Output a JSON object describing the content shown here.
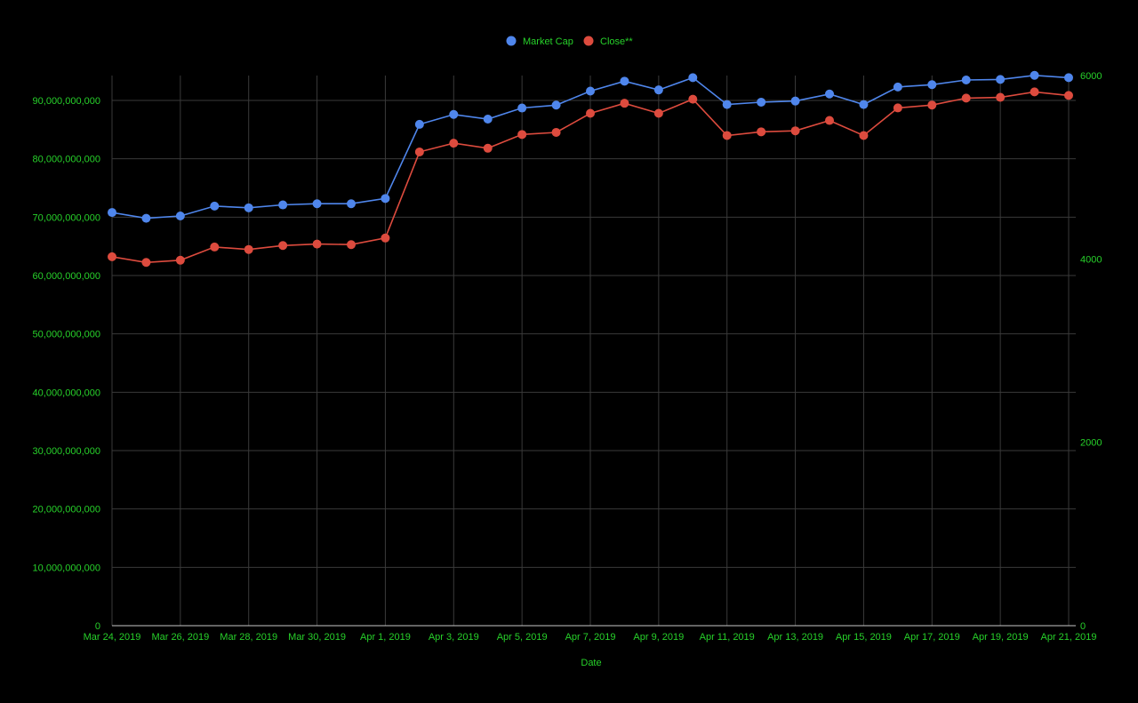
{
  "chart_data": {
    "type": "line",
    "xlabel": "Date",
    "y_left_ticks": [
      "0",
      "10,000,000,000",
      "20,000,000,000",
      "30,000,000,000",
      "40,000,000,000",
      "50,000,000,000",
      "60,000,000,000",
      "70,000,000,000",
      "80,000,000,000",
      "90,000,000,000"
    ],
    "y_right_ticks": [
      "0",
      "2000",
      "4000",
      "6000"
    ],
    "x_tick_labels": [
      "Mar 24, 2019",
      "Mar 26, 2019",
      "Mar 28, 2019",
      "Mar 30, 2019",
      "Apr 1, 2019",
      "Apr 3, 2019",
      "Apr 5, 2019",
      "Apr 7, 2019",
      "Apr 9, 2019",
      "Apr 11, 2019",
      "Apr 13, 2019",
      "Apr 15, 2019",
      "Apr 17, 2019",
      "Apr 19, 2019",
      "Apr 21, 2019"
    ],
    "y_left_range": [
      0,
      90000000000
    ],
    "y_right_range": [
      0,
      6000
    ],
    "grid": true,
    "legend_position": "top",
    "x": [
      "Mar 24, 2019",
      "Mar 25, 2019",
      "Mar 26, 2019",
      "Mar 27, 2019",
      "Mar 28, 2019",
      "Mar 29, 2019",
      "Mar 30, 2019",
      "Mar 31, 2019",
      "Apr 1, 2019",
      "Apr 2, 2019",
      "Apr 3, 2019",
      "Apr 4, 2019",
      "Apr 5, 2019",
      "Apr 6, 2019",
      "Apr 7, 2019",
      "Apr 8, 2019",
      "Apr 9, 2019",
      "Apr 10, 2019",
      "Apr 11, 2019",
      "Apr 12, 2019",
      "Apr 13, 2019",
      "Apr 14, 2019",
      "Apr 15, 2019",
      "Apr 16, 2019",
      "Apr 17, 2019",
      "Apr 18, 2019",
      "Apr 19, 2019",
      "Apr 20, 2019",
      "Apr 21, 2019"
    ],
    "series": [
      {
        "name": "Market Cap",
        "axis": "left",
        "color": "#4f86ec",
        "values": [
          70800000000,
          69800000000,
          70200000000,
          71900000000,
          71600000000,
          72100000000,
          72300000000,
          72300000000,
          73200000000,
          85900000000,
          87600000000,
          86800000000,
          88700000000,
          89200000000,
          91600000000,
          93300000000,
          91800000000,
          93900000000,
          89300000000,
          89700000000,
          89900000000,
          91100000000,
          89300000000,
          92300000000,
          92700000000,
          93500000000,
          93600000000,
          94300000000,
          93900000000
        ]
      },
      {
        "name": "Close**",
        "axis": "right",
        "color": "#dd4b3e",
        "values": [
          4024,
          3962,
          3986,
          4130,
          4103,
          4146,
          4162,
          4156,
          4228,
          5167,
          5262,
          5207,
          5357,
          5380,
          5588,
          5698,
          5588,
          5742,
          5346,
          5386,
          5397,
          5510,
          5346,
          5647,
          5678,
          5754,
          5762,
          5822,
          5783
        ]
      }
    ]
  }
}
